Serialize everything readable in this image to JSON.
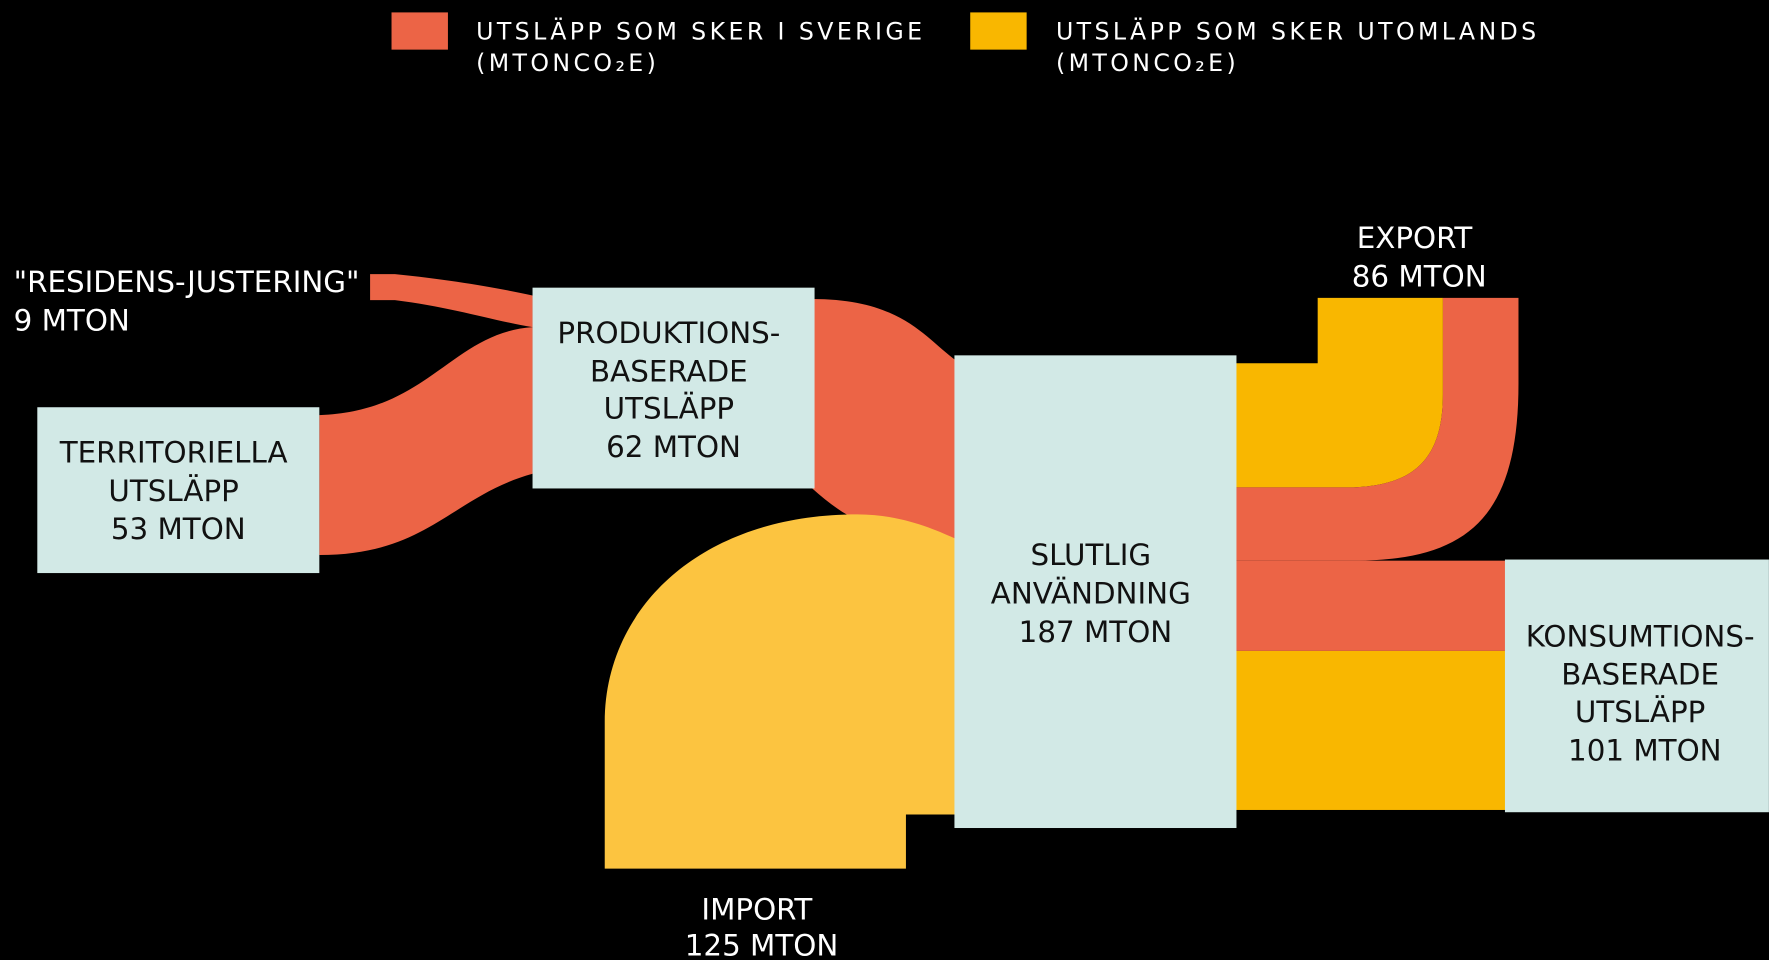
{
  "legend": [
    {
      "label": "UTSLÄPP SOM SKER I SVERIGE",
      "unit": "(MTONCO₂E)",
      "color": "#ec6446"
    },
    {
      "label": "UTSLÄPP SOM SKER UTOMLANDS",
      "unit": "(MTONCO₂E)",
      "color": "#f9b700"
    }
  ],
  "nodes": [
    {
      "lines": [
        "\"RESIDENS-JUSTERING\"",
        "9 MTON"
      ]
    },
    {
      "lines": [
        "TERRITORIELLA",
        "UTSLÄPP",
        "53 MTON"
      ]
    },
    {
      "lines": [
        "PRODUKTIONS-",
        "BASERADE",
        "UTSLÄPP",
        "62 MTON"
      ]
    },
    {
      "lines": [
        "IMPORT",
        "125 MTON"
      ]
    },
    {
      "lines": [
        "SLUTLIG",
        "ANVÄNDNING",
        "187 MTON"
      ]
    },
    {
      "lines": [
        "EXPORT",
        "86 MTON"
      ]
    },
    {
      "lines": [
        "KONSUMTIONS-",
        "BASERADE",
        "UTSLÄPP",
        "101 MTON"
      ]
    }
  ]
}
